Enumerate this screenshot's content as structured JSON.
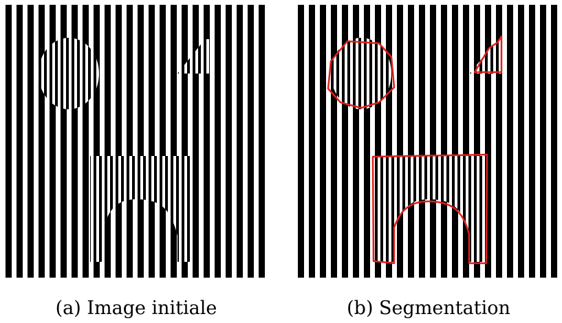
{
  "figure": {
    "panels": [
      {
        "id": "a",
        "caption": "(a) Image initiale",
        "content": "vertical stripe pattern with hidden shapes (initial image)"
      },
      {
        "id": "b",
        "caption": "(b) Segmentation",
        "content": "same stripe pattern with segmented regions outlined"
      }
    ],
    "colors": {
      "stripe": "#000000",
      "background": "#ffffff",
      "segmentation_outline": "#e0201c"
    }
  }
}
